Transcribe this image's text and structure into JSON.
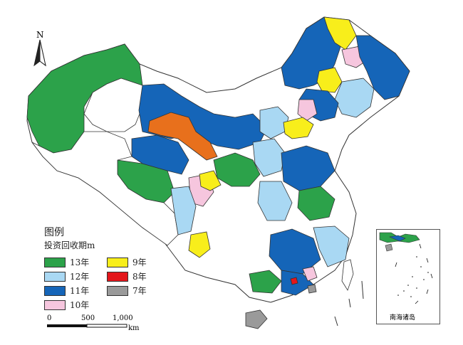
{
  "north_label": "N",
  "legend": {
    "title": "图例",
    "subtitle": "投资回收期m",
    "items": [
      {
        "label": "13年",
        "color": "#2ca24a"
      },
      {
        "label": "9年",
        "color": "#f8ee1b"
      },
      {
        "label": "12年",
        "color": "#a9d8f3"
      },
      {
        "label": "8年",
        "color": "#e3161b"
      },
      {
        "label": "11年",
        "color": "#1565b8"
      },
      {
        "label": "7年",
        "color": "#9a9a9a"
      },
      {
        "label": "10年",
        "color": "#f6c6de"
      }
    ]
  },
  "scale": {
    "ticks": [
      "0",
      "500",
      "1,000"
    ],
    "unit": "km"
  },
  "inset": {
    "label": "南海诸岛"
  },
  "colors": {
    "border": "#333333",
    "water": "#ffffff",
    "orange": "#e8701c"
  }
}
